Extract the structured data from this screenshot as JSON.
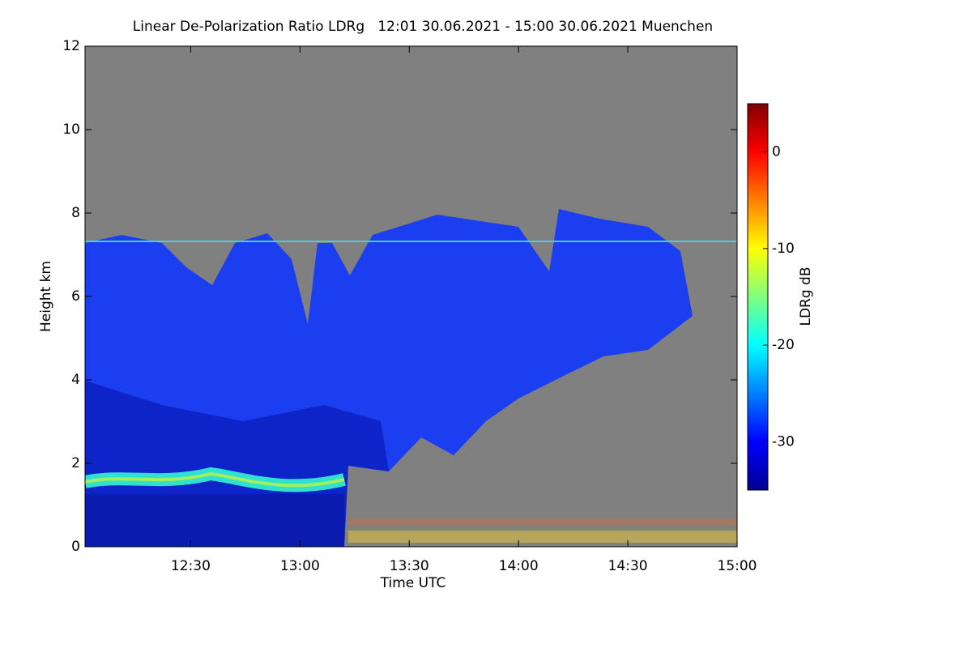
{
  "chart_data": {
    "type": "heatmap",
    "title": "Linear De-Polarization Ratio LDRg   12:01 30.06.2021 - 15:00 30.06.2021 Muenchen",
    "x_label": "Time UTC",
    "y_label": "Height km",
    "colorbar_label": "LDRg dB",
    "xlim": [
      721,
      900
    ],
    "xticks": [
      {
        "value": 750,
        "label": "12:30"
      },
      {
        "value": 780,
        "label": "13:00"
      },
      {
        "value": 810,
        "label": "13:30"
      },
      {
        "value": 840,
        "label": "14:00"
      },
      {
        "value": 870,
        "label": "14:30"
      },
      {
        "value": 900,
        "label": "15:00"
      }
    ],
    "ylim": [
      0,
      12
    ],
    "yticks": [
      0,
      2,
      4,
      6,
      8,
      10,
      12
    ],
    "zlim": [
      -35,
      5
    ],
    "zticks": [
      -30,
      -20,
      -10,
      0
    ],
    "colormap": "jet",
    "no_data_color": "#808080"
  }
}
